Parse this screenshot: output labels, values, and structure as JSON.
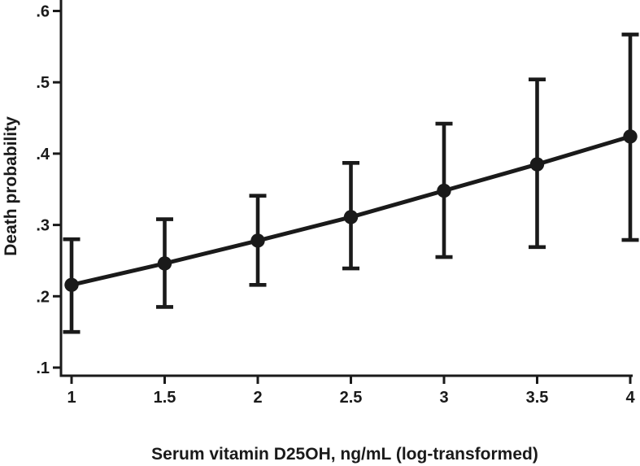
{
  "figure": {
    "background": "#ffffff",
    "ink_color": "#1a1a1a"
  },
  "chart_data": {
    "type": "line",
    "title": "",
    "xlabel": "Serum vitamin D25OH, ng/mL (log-transformed)",
    "ylabel": "Death probability",
    "x": [
      1,
      1.5,
      2,
      2.5,
      3,
      3.5,
      4
    ],
    "values": [
      0.216,
      0.246,
      0.278,
      0.311,
      0.348,
      0.385,
      0.424
    ],
    "ci_low": [
      0.15,
      0.185,
      0.216,
      0.239,
      0.255,
      0.269,
      0.279
    ],
    "ci_high": [
      0.28,
      0.308,
      0.341,
      0.387,
      0.442,
      0.504,
      0.567
    ],
    "xticks": [
      1,
      1.5,
      2,
      2.5,
      3,
      3.5,
      4
    ],
    "xtick_labels": [
      "1",
      "1.5",
      "2",
      "2.5",
      "3",
      "3.5",
      "4"
    ],
    "yticks": [
      0.1,
      0.2,
      0.3,
      0.4,
      0.5,
      0.6
    ],
    "ytick_labels": [
      ".1",
      ".2",
      ".3",
      ".4",
      ".5",
      ".6"
    ],
    "xlim": [
      1,
      4
    ],
    "ylim": [
      0.1,
      0.6
    ],
    "grid": false,
    "legend": false,
    "marker": "filled-circle",
    "error_bars": "capped-95ci"
  }
}
